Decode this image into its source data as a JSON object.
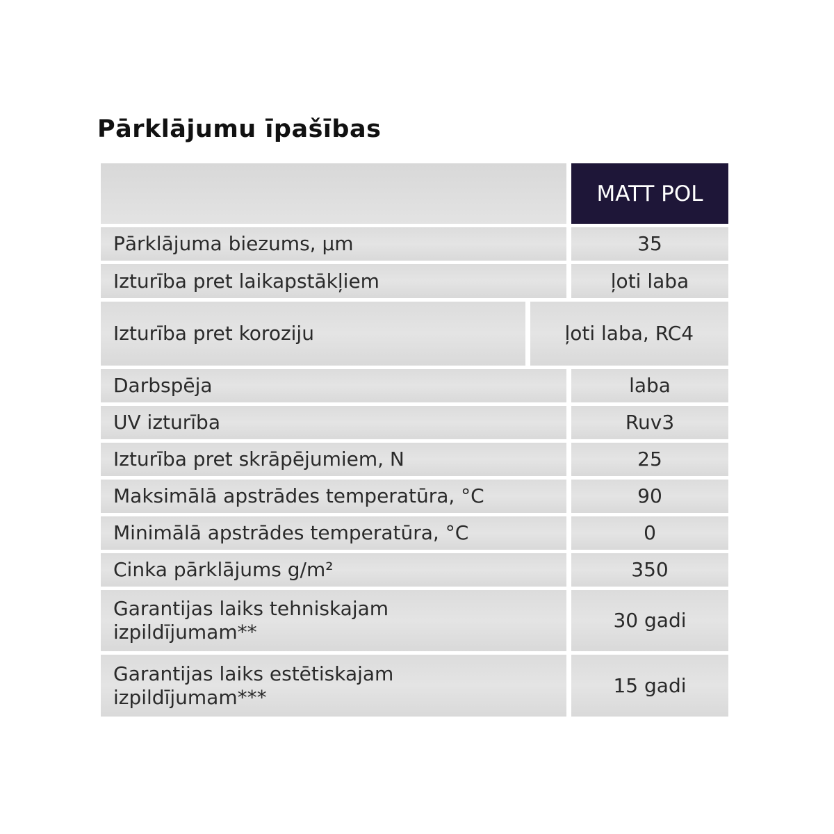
{
  "title": "Pārklājumu īpašības",
  "table": {
    "header": [
      "",
      "MATT POL"
    ],
    "header_bg": "#1e1638",
    "rows": [
      {
        "label": "Pārklājuma biezums, µm",
        "value": "35"
      },
      {
        "label": "Izturība pret laikapstākļiem",
        "value": "ļoti laba"
      },
      {
        "label": "Izturība pret koroziju",
        "value": "ļoti laba, RC4"
      },
      {
        "label": "Darbspēja",
        "value": "laba"
      },
      {
        "label": "UV izturība",
        "value": "Ruv3"
      },
      {
        "label": "Izturība pret skrāpējumiem, N",
        "value": "25"
      },
      {
        "label": "Maksimālā apstrādes temperatūra, °C",
        "value": "90"
      },
      {
        "label": "Minimālā apstrādes temperatūra, °C",
        "value": "0"
      },
      {
        "label": "Cinka pārklājums g/m²",
        "value": "350"
      },
      {
        "label": "Garantijas laiks tehniskajam izpildījumam**",
        "value": "30 gadi"
      },
      {
        "label": "Garantijas laiks estētiskajam izpildījumam***",
        "value": "15 gadi"
      }
    ]
  }
}
